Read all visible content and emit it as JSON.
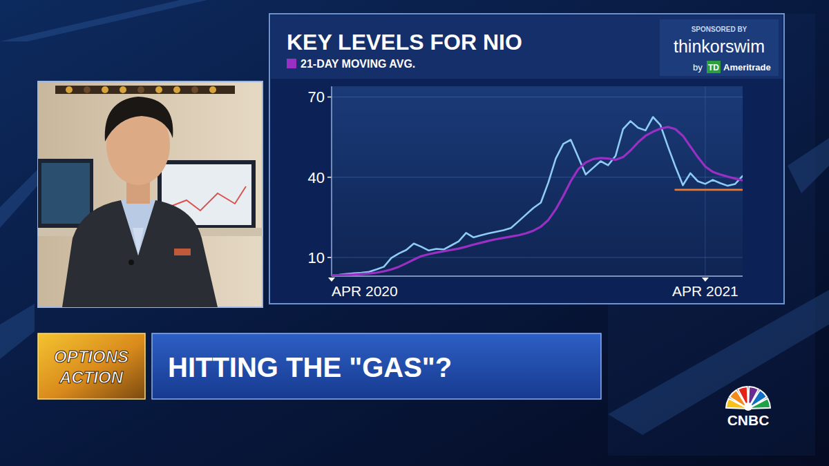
{
  "chart_data": {
    "type": "line",
    "title": "KEY LEVELS FOR NIO",
    "categories": [
      "APR 2020",
      null,
      null,
      null,
      null,
      null,
      null,
      null,
      null,
      null,
      null,
      null,
      null,
      null,
      null,
      null,
      null,
      null,
      null,
      null,
      null,
      null,
      null,
      null,
      null,
      null,
      null,
      null,
      null,
      null,
      null,
      null,
      null,
      null,
      null,
      null,
      null,
      null,
      null,
      null,
      null,
      null,
      null,
      null,
      null,
      null,
      null,
      null,
      null,
      null,
      "APR 2021",
      null,
      null,
      null,
      null,
      null
    ],
    "series": [
      {
        "color": "#8ecbf5",
        "values": [
          3.4,
          3.5,
          3.8,
          4.1,
          4.3,
          4.6,
          5.5,
          6.5,
          9.8,
          11.5,
          12.8,
          15.2,
          14.0,
          12.6,
          13.2,
          13.0,
          14.5,
          16.0,
          19.2,
          17.5,
          18.3,
          19.0,
          19.6,
          20.2,
          21.0,
          23.5,
          26.0,
          28.5,
          30.5,
          38.0,
          47.0,
          52.5,
          54.0,
          47.5,
          41.0,
          43.5,
          46.0,
          44.5,
          48.0,
          58.0,
          61.0,
          58.5,
          57.5,
          62.5,
          59.5,
          51.5,
          44.0,
          37.0,
          41.5,
          38.5,
          37.5,
          39.0,
          37.8,
          36.8,
          37.5,
          40.5
        ]
      },
      {
        "name": "21-DAY MOVING AVG.",
        "color": "#9a2fc4",
        "values": [
          3.4,
          3.4,
          3.5,
          3.6,
          3.8,
          4.0,
          4.3,
          4.8,
          5.5,
          6.5,
          7.8,
          9.2,
          10.5,
          11.2,
          11.8,
          12.3,
          12.8,
          13.3,
          14.0,
          14.8,
          15.5,
          16.2,
          16.8,
          17.3,
          17.8,
          18.3,
          19.0,
          20.0,
          21.5,
          24.0,
          28.0,
          33.0,
          38.5,
          43.0,
          45.5,
          46.8,
          47.2,
          47.0,
          46.5,
          47.5,
          50.0,
          53.0,
          55.5,
          57.0,
          58.2,
          58.8,
          58.0,
          55.5,
          51.5,
          47.5,
          44.0,
          42.0,
          41.0,
          40.2,
          39.5,
          38.8
        ]
      },
      {
        "color": "#f07a28",
        "line_style": "solid",
        "values": [
          null,
          null,
          null,
          null,
          null,
          null,
          null,
          null,
          null,
          null,
          null,
          null,
          null,
          null,
          null,
          null,
          null,
          null,
          null,
          null,
          null,
          null,
          null,
          null,
          null,
          null,
          null,
          null,
          null,
          null,
          null,
          null,
          null,
          null,
          null,
          null,
          null,
          null,
          null,
          null,
          null,
          null,
          null,
          null,
          null,
          null,
          35.3,
          35.3,
          35.3,
          35.3,
          35.3,
          35.3,
          35.3,
          35.3,
          35.3,
          35.3
        ]
      }
    ],
    "ylim": [
      3,
      74
    ],
    "yticks": [
      10,
      40,
      70
    ],
    "grid": true,
    "legend": "top-left"
  },
  "sponsor": {
    "heading": "SPONSORED BY",
    "brand": "thinkorswim",
    "by": "by",
    "logo": "TD",
    "company": "Ameritrade"
  },
  "banner": {
    "show": [
      "OPTIONS",
      "ACTION"
    ],
    "headline": "HITTING THE \"GAS\"?"
  },
  "network": "CNBC"
}
